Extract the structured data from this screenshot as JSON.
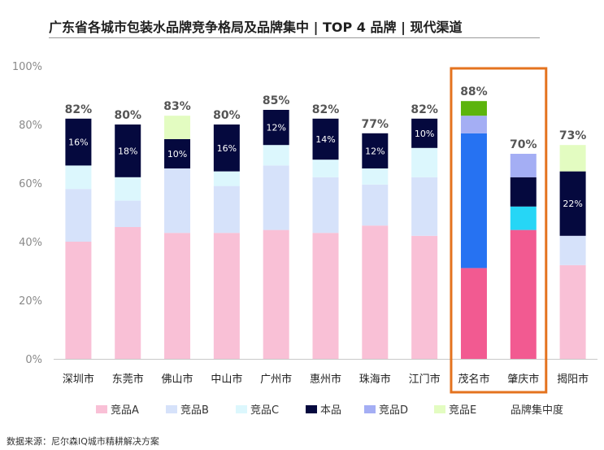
{
  "title": "广东省各城市包装水品牌竞争格局及品牌集中 | TOP 4 品牌 | 现代渠道",
  "source": "数据来源：尼尔森IQ城市精耕解决方案",
  "legend_extra": "品牌集中度",
  "colors": {
    "A": "#f9c0d6",
    "B": "#d6e2fa",
    "C": "#dcf7fd",
    "self": "#05093e",
    "D": "#a4aef4",
    "E": "#e3fcc1",
    "hl_A": "#f25a91",
    "hl_B": "#2672f2",
    "hl_C": "#26d6f6",
    "hl_self": "#05093e",
    "hl_D": "#a4aef4",
    "hl_E": "#5cb40c",
    "highlight_box": "#e4731f"
  },
  "chart_data": {
    "type": "bar",
    "stacked": true,
    "title": "广东省各城市包装水品牌竞争格局及品牌集中 | TOP 4 品牌 | 现代渠道",
    "xlabel": "",
    "ylabel": "",
    "ylim": [
      0,
      100
    ],
    "yticks": [
      "0%",
      "20%",
      "40%",
      "60%",
      "80%",
      "100%"
    ],
    "grid": false,
    "legend_position": "bottom",
    "categories": [
      "深圳市",
      "东莞市",
      "佛山市",
      "中山市",
      "广州市",
      "惠州市",
      "珠海市",
      "江门市",
      "茂名市",
      "肇庆市",
      "揭阳市"
    ],
    "series": [
      {
        "name": "竞品A",
        "key": "A",
        "values": [
          40,
          45,
          43,
          43,
          44,
          43,
          45.5,
          42,
          31,
          44,
          32
        ]
      },
      {
        "name": "竞品B",
        "key": "B",
        "values": [
          18,
          9,
          22,
          16,
          22,
          19,
          14,
          20,
          46,
          0,
          10
        ]
      },
      {
        "name": "竞品C",
        "key": "C",
        "values": [
          8,
          8,
          0,
          5,
          7,
          6,
          5.5,
          10,
          0,
          8,
          0
        ]
      },
      {
        "name": "本品",
        "key": "self",
        "values": [
          16,
          18,
          10,
          16,
          12,
          14,
          12,
          10,
          0,
          10,
          22
        ]
      },
      {
        "name": "竞品D",
        "key": "D",
        "values": [
          0,
          0,
          0,
          0,
          0,
          0,
          0,
          0,
          6,
          8,
          0
        ]
      },
      {
        "name": "竞品E",
        "key": "E",
        "values": [
          0,
          0,
          8,
          0,
          0,
          0,
          0,
          0,
          5,
          0,
          9
        ]
      }
    ],
    "self_labels": [
      "16%",
      "18%",
      "10%",
      "16%",
      "12%",
      "14%",
      "12%",
      "10%",
      "",
      "",
      "22%"
    ],
    "totals": [
      "82%",
      "80%",
      "83%",
      "80%",
      "85%",
      "82%",
      "77%",
      "82%",
      "88%",
      "70%",
      "73%"
    ],
    "highlighted": [
      "茂名市",
      "肇庆市"
    ]
  }
}
